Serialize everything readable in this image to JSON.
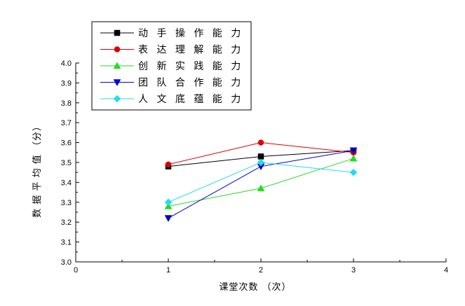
{
  "chart_data": {
    "type": "line",
    "xlabel": "课堂次数 （次）",
    "ylabel": "数 据 平 均 值 （分）",
    "xlim": [
      0,
      4
    ],
    "ylim": [
      3.0,
      4.0
    ],
    "x_ticks": [
      "0",
      "1",
      "2",
      "3",
      "4"
    ],
    "y_ticks": [
      "3.0",
      "3.1",
      "3.2",
      "3.3",
      "3.4",
      "3.5",
      "3.6",
      "3.7",
      "3.8",
      "3.9",
      "4.0"
    ],
    "grid": false,
    "legend_position": "top-left",
    "x": [
      1,
      2,
      3
    ],
    "series": [
      {
        "name": "动 手 操 作 能 力",
        "values": [
          3.48,
          3.53,
          3.56
        ],
        "color": "#000000",
        "marker": "square"
      },
      {
        "name": "表 达 理 解 能 力",
        "values": [
          3.49,
          3.6,
          3.55
        ],
        "color": "#dd0000",
        "marker": "circle"
      },
      {
        "name": "创 新 实 践 能 力",
        "values": [
          3.28,
          3.37,
          3.52
        ],
        "color": "#22dd22",
        "marker": "triangle-up"
      },
      {
        "name": "团 队 合 作 能 力",
        "values": [
          3.22,
          3.48,
          3.56
        ],
        "color": "#0000cc",
        "marker": "triangle-down"
      },
      {
        "name": "人 文 底 蕴 能 力",
        "values": [
          3.3,
          3.5,
          3.45
        ],
        "color": "#22ddee",
        "marker": "diamond"
      }
    ]
  }
}
